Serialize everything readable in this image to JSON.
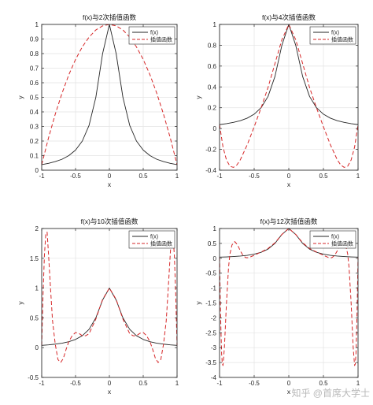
{
  "watermark": "知乎 @首席大学士",
  "colors": {
    "f": "#262626",
    "interp": "#d62728",
    "grid": "#e3e3e3",
    "axis": "#262626"
  },
  "chart_data": [
    {
      "type": "line",
      "title": "f(x)与2次插值函数",
      "xlabel": "x",
      "ylabel": "y",
      "xlim": [
        -1,
        1
      ],
      "ylim": [
        0,
        1
      ],
      "xticks": [
        -1,
        -0.5,
        0,
        0.5,
        1
      ],
      "xtick_labels": [
        "-1",
        "-0.5",
        "0",
        "0.5",
        "1"
      ],
      "yticks": [
        0,
        0.1,
        0.2,
        0.3,
        0.4,
        0.5,
        0.6,
        0.7,
        0.8,
        0.9,
        1
      ],
      "ytick_labels": [
        "0",
        "0.1",
        "0.2",
        "0.3",
        "0.4",
        "0.5",
        "0.6",
        "0.7",
        "0.8",
        "0.9",
        "1"
      ],
      "grid": true,
      "legend_position": "top-right",
      "series": [
        {
          "name": "f(x)",
          "style": "solid",
          "x": [
            -1,
            -0.9,
            -0.8,
            -0.7,
            -0.6,
            -0.5,
            -0.4,
            -0.3,
            -0.2,
            -0.1,
            0,
            0.1,
            0.2,
            0.3,
            0.4,
            0.5,
            0.6,
            0.7,
            0.8,
            0.9,
            1
          ],
          "y": [
            0.038,
            0.047,
            0.059,
            0.075,
            0.1,
            0.138,
            0.2,
            0.308,
            0.5,
            0.8,
            1,
            0.8,
            0.5,
            0.308,
            0.2,
            0.138,
            0.1,
            0.075,
            0.059,
            0.047,
            0.038
          ]
        },
        {
          "name": "插值函数",
          "style": "dashed",
          "x": [
            -1,
            -0.9,
            -0.8,
            -0.7,
            -0.6,
            -0.5,
            -0.4,
            -0.3,
            -0.2,
            -0.1,
            0,
            0.1,
            0.2,
            0.3,
            0.4,
            0.5,
            0.6,
            0.7,
            0.8,
            0.9,
            1
          ],
          "y": [
            0.038,
            0.221,
            0.384,
            0.528,
            0.654,
            0.76,
            0.846,
            0.913,
            0.962,
            0.99,
            1,
            0.99,
            0.962,
            0.913,
            0.846,
            0.76,
            0.654,
            0.528,
            0.384,
            0.221,
            0.038
          ]
        }
      ]
    },
    {
      "type": "line",
      "title": "f(x)与4次插值函数",
      "xlabel": "x",
      "ylabel": "y",
      "xlim": [
        -1,
        1
      ],
      "ylim": [
        -0.4,
        1
      ],
      "xticks": [
        -1,
        -0.5,
        0,
        0.5,
        1
      ],
      "xtick_labels": [
        "-1",
        "-0.5",
        "0",
        "0.5",
        "1"
      ],
      "yticks": [
        -0.4,
        -0.2,
        0,
        0.2,
        0.4,
        0.6,
        0.8,
        1
      ],
      "ytick_labels": [
        "-0.4",
        "-0.2",
        "0",
        "0.2",
        "0.4",
        "0.6",
        "0.8",
        "1"
      ],
      "grid": true,
      "legend_position": "top-right",
      "series": [
        {
          "name": "f(x)",
          "style": "solid",
          "x": [
            -1,
            -0.9,
            -0.8,
            -0.7,
            -0.6,
            -0.5,
            -0.4,
            -0.3,
            -0.2,
            -0.1,
            0,
            0.1,
            0.2,
            0.3,
            0.4,
            0.5,
            0.6,
            0.7,
            0.8,
            0.9,
            1
          ],
          "y": [
            0.038,
            0.047,
            0.059,
            0.075,
            0.1,
            0.138,
            0.2,
            0.308,
            0.5,
            0.8,
            1,
            0.8,
            0.5,
            0.308,
            0.2,
            0.138,
            0.1,
            0.075,
            0.059,
            0.047,
            0.038
          ]
        },
        {
          "name": "插值函数",
          "style": "dashed",
          "x": [
            -1,
            -0.95,
            -0.9,
            -0.85,
            -0.8,
            -0.75,
            -0.7,
            -0.6,
            -0.5,
            -0.4,
            -0.3,
            -0.2,
            -0.1,
            0,
            0.1,
            0.2,
            0.3,
            0.4,
            0.5,
            0.6,
            0.7,
            0.75,
            0.8,
            0.85,
            0.9,
            0.95,
            1
          ],
          "y": [
            0.038,
            -0.178,
            -0.302,
            -0.362,
            -0.373,
            -0.35,
            -0.3,
            -0.155,
            0.017,
            0.199,
            0.394,
            0.624,
            0.853,
            1,
            0.853,
            0.624,
            0.394,
            0.199,
            0.017,
            -0.155,
            -0.3,
            -0.35,
            -0.373,
            -0.362,
            -0.302,
            -0.178,
            0.038
          ]
        }
      ]
    },
    {
      "type": "line",
      "title": "f(x)与10次插值函数",
      "xlabel": "x",
      "ylabel": "y",
      "xlim": [
        -1,
        1
      ],
      "ylim": [
        -0.5,
        2
      ],
      "xticks": [
        -1,
        -0.5,
        0,
        0.5,
        1
      ],
      "xtick_labels": [
        "-1",
        "-0.5",
        "0",
        "0.5",
        "1"
      ],
      "yticks": [
        -0.5,
        0,
        0.5,
        1,
        1.5,
        2
      ],
      "ytick_labels": [
        "-0.5",
        "0",
        "0.5",
        "1",
        "1.5",
        "2"
      ],
      "grid": true,
      "legend_position": "top-right",
      "series": [
        {
          "name": "f(x)",
          "style": "solid",
          "x": [
            -1,
            -0.9,
            -0.8,
            -0.7,
            -0.6,
            -0.5,
            -0.4,
            -0.3,
            -0.2,
            -0.1,
            0,
            0.1,
            0.2,
            0.3,
            0.4,
            0.5,
            0.6,
            0.7,
            0.8,
            0.9,
            1
          ],
          "y": [
            0.038,
            0.047,
            0.059,
            0.075,
            0.1,
            0.138,
            0.2,
            0.308,
            0.5,
            0.8,
            1,
            0.8,
            0.5,
            0.308,
            0.2,
            0.138,
            0.1,
            0.075,
            0.059,
            0.047,
            0.038
          ]
        },
        {
          "name": "插值函数",
          "style": "dashed",
          "x": [
            -1,
            -0.98,
            -0.96,
            -0.94,
            -0.92,
            -0.9,
            -0.87,
            -0.84,
            -0.8,
            -0.76,
            -0.72,
            -0.68,
            -0.64,
            -0.6,
            -0.55,
            -0.5,
            -0.45,
            -0.4,
            -0.35,
            -0.3,
            -0.2,
            -0.1,
            0,
            0.1,
            0.2,
            0.3,
            0.35,
            0.4,
            0.45,
            0.5,
            0.55,
            0.6,
            0.64,
            0.68,
            0.72,
            0.76,
            0.8,
            0.84,
            0.87,
            0.9,
            0.92,
            0.94,
            0.96,
            0.98,
            1
          ],
          "y": [
            0.038,
            0.9,
            1.55,
            1.9,
            1.94,
            1.579,
            1.0,
            0.45,
            0.059,
            -0.2,
            -0.25,
            -0.18,
            -0.03,
            0.1,
            0.2,
            0.254,
            0.24,
            0.2,
            0.2,
            0.235,
            0.48,
            0.81,
            1,
            0.81,
            0.48,
            0.235,
            0.2,
            0.2,
            0.24,
            0.254,
            0.2,
            0.1,
            -0.03,
            -0.18,
            -0.25,
            -0.2,
            0.059,
            0.45,
            1.0,
            1.579,
            1.94,
            1.9,
            1.55,
            0.9,
            0.038
          ]
        }
      ]
    },
    {
      "type": "line",
      "title": "f(x)与12次插值函数",
      "xlabel": "x",
      "ylabel": "y",
      "xlim": [
        -1,
        1
      ],
      "ylim": [
        -4,
        1
      ],
      "xticks": [
        -1,
        -0.5,
        0,
        0.5,
        1
      ],
      "xtick_labels": [
        "-1",
        "-0.5",
        "0",
        "0.5",
        "1"
      ],
      "yticks": [
        -4,
        -3.5,
        -3,
        -2.5,
        -2,
        -1.5,
        -1,
        -0.5,
        0,
        0.5,
        1
      ],
      "ytick_labels": [
        "-4",
        "-3.5",
        "-3",
        "-2.5",
        "-2",
        "-1.5",
        "-1",
        "-0.5",
        "0",
        "0.5",
        "1"
      ],
      "grid": true,
      "legend_position": "top-right",
      "series": [
        {
          "name": "f(x)",
          "style": "solid",
          "x": [
            -1,
            -0.9,
            -0.8,
            -0.7,
            -0.6,
            -0.5,
            -0.4,
            -0.3,
            -0.2,
            -0.1,
            0,
            0.1,
            0.2,
            0.3,
            0.4,
            0.5,
            0.6,
            0.7,
            0.8,
            0.9,
            1
          ],
          "y": [
            0.038,
            0.047,
            0.059,
            0.075,
            0.1,
            0.138,
            0.2,
            0.308,
            0.5,
            0.8,
            1,
            0.8,
            0.5,
            0.308,
            0.2,
            0.138,
            0.1,
            0.075,
            0.059,
            0.047,
            0.038
          ]
        },
        {
          "name": "插值函数",
          "style": "dashed",
          "x": [
            -1,
            -0.99,
            -0.98,
            -0.97,
            -0.96,
            -0.95,
            -0.93,
            -0.9,
            -0.87,
            -0.85,
            -0.82,
            -0.78,
            -0.74,
            -0.7,
            -0.66,
            -0.62,
            -0.58,
            -0.5,
            -0.4,
            -0.3,
            -0.2,
            -0.1,
            0,
            0.1,
            0.2,
            0.3,
            0.4,
            0.5,
            0.58,
            0.62,
            0.66,
            0.7,
            0.74,
            0.78,
            0.82,
            0.85,
            0.87,
            0.9,
            0.93,
            0.95,
            0.96,
            0.97,
            0.98,
            0.99,
            1
          ],
          "y": [
            0.038,
            -1.3,
            -2.4,
            -3.2,
            -3.55,
            -3.6,
            -3.0,
            -1.5,
            -0.3,
            0.15,
            0.45,
            0.56,
            0.45,
            0.25,
            0.09,
            0.02,
            0.02,
            0.1,
            0.21,
            0.33,
            0.52,
            0.8,
            1,
            0.8,
            0.52,
            0.33,
            0.21,
            0.1,
            0.02,
            0.02,
            0.09,
            0.25,
            0.45,
            0.56,
            0.45,
            0.15,
            -0.3,
            -1.5,
            -3.0,
            -3.6,
            -3.55,
            -3.2,
            -2.4,
            -1.3,
            0.038
          ]
        }
      ]
    }
  ]
}
